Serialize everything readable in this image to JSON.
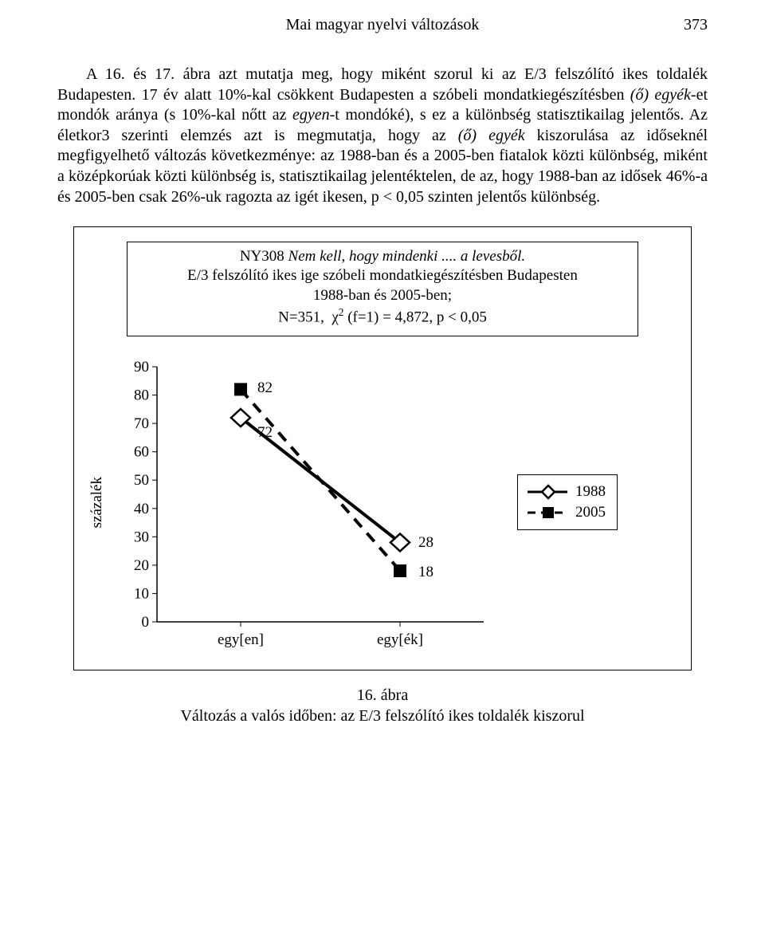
{
  "header": {
    "running_title": "Mai magyar nyelvi változások",
    "page_number": "373"
  },
  "paragraph": {
    "text_parts": [
      {
        "t": "A 16. és 17. ábra azt mutatja meg, hogy miként szorul ki az E/3 felszólító ikes toldalék Budapesten. 17 év alatt 10%-kal csökkent Budapesten a szóbeli mondatkiegészítésben ",
        "it": false
      },
      {
        "t": "(ő) egyék",
        "it": true
      },
      {
        "t": "-et mondók aránya (s 10%-kal nőtt az ",
        "it": false
      },
      {
        "t": "egyen",
        "it": true
      },
      {
        "t": "-t mondóké), s ez a különbség statisztikailag jelentős. Az életkor3 szerinti elemzés azt is megmutatja, hogy az ",
        "it": false
      },
      {
        "t": "(ő) egyék",
        "it": true
      },
      {
        "t": " kiszorulása az időseknél megfigyelhető változás következménye: az 1988-ban és a 2005-ben fiatalok közti különbség, miként a középkorúak közti különbség is, statisztikailag jelentéktelen, de az, hogy 1988-ban az idősek 46%-a és 2005-ben csak 26%-uk ragozta az igét ikesen, p < 0,05 szinten jelentős különbség.",
        "it": false
      }
    ]
  },
  "figure": {
    "title_lines": {
      "l1_prefix": "NY308 ",
      "l1_italic": "Nem kell, hogy mindenki .... a levesből.",
      "l2": "E/3 felszólító ikes ige szóbeli mondatkiegészítésben Budapesten",
      "l3": "1988-ban és 2005-ben;",
      "l4": "N=351,  χ² (f=1) = 4,872, p < 0,05"
    },
    "chart": {
      "type": "line",
      "categories": [
        "egy[en]",
        "egy[ék]"
      ],
      "series": [
        {
          "name": "1988",
          "values": [
            72,
            28
          ],
          "color": "#000000",
          "line_width": 4,
          "line_dash": "none",
          "marker": "diamond-open",
          "marker_size": 16
        },
        {
          "name": "2005",
          "values": [
            82,
            18
          ],
          "color": "#000000",
          "line_width": 4,
          "line_dash": "8,8",
          "marker": "square-solid",
          "marker_size": 14
        }
      ],
      "value_labels": {
        "s2005_c0": "82",
        "s1988_c0": "72",
        "s1988_c1": "28",
        "s2005_c1": "18"
      },
      "ylabel": "százalék",
      "ylim": [
        0,
        90
      ],
      "ytick_step": 10,
      "yticks": [
        "0",
        "10",
        "20",
        "30",
        "40",
        "50",
        "60",
        "70",
        "80",
        "90"
      ],
      "axis_color": "#000000",
      "tick_fontsize": 19,
      "background_color": "#ffffff"
    },
    "legend": {
      "items": [
        {
          "label": "1988",
          "style": "solid-diamond-open"
        },
        {
          "label": "2005",
          "style": "dash-square-solid"
        }
      ]
    },
    "caption_number": "16. ábra",
    "caption_text": "Változás a valós időben: az E/3 felszólító ikes toldalék kiszorul"
  }
}
